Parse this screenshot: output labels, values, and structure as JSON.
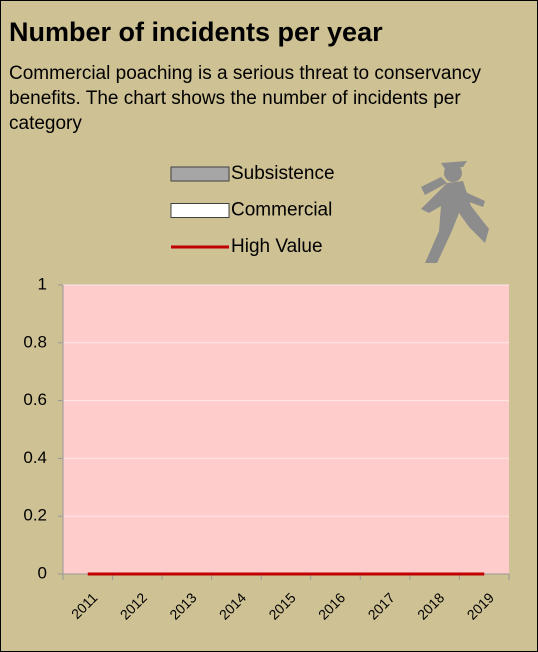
{
  "chart_data": {
    "type": "bar",
    "title": "Number of incidents per year",
    "subtitle": "Commercial poaching is a serious threat to conservancy benefits. The chart shows the number of incidents per category",
    "categories": [
      "2011",
      "2012",
      "2013",
      "2014",
      "2015",
      "2016",
      "2017",
      "2018",
      "2019"
    ],
    "series": [
      {
        "name": "Subsistence",
        "type": "bar",
        "color": "#a6a6a6",
        "values": [
          0,
          0,
          0,
          0,
          0,
          0,
          0,
          0,
          0
        ]
      },
      {
        "name": "Commercial",
        "type": "bar",
        "color": "#ffffff",
        "values": [
          0,
          0,
          0,
          0,
          0,
          0,
          0,
          0,
          0
        ]
      },
      {
        "name": "High Value",
        "type": "line",
        "color": "#c00000",
        "values": [
          0,
          0,
          0,
          0,
          0,
          0,
          0,
          0,
          0
        ]
      }
    ],
    "ylim": [
      0,
      1
    ],
    "yticks": [
      0,
      0.2,
      0.4,
      0.6,
      0.8,
      1
    ],
    "grid": true,
    "plot_background": "#ffcccc"
  }
}
